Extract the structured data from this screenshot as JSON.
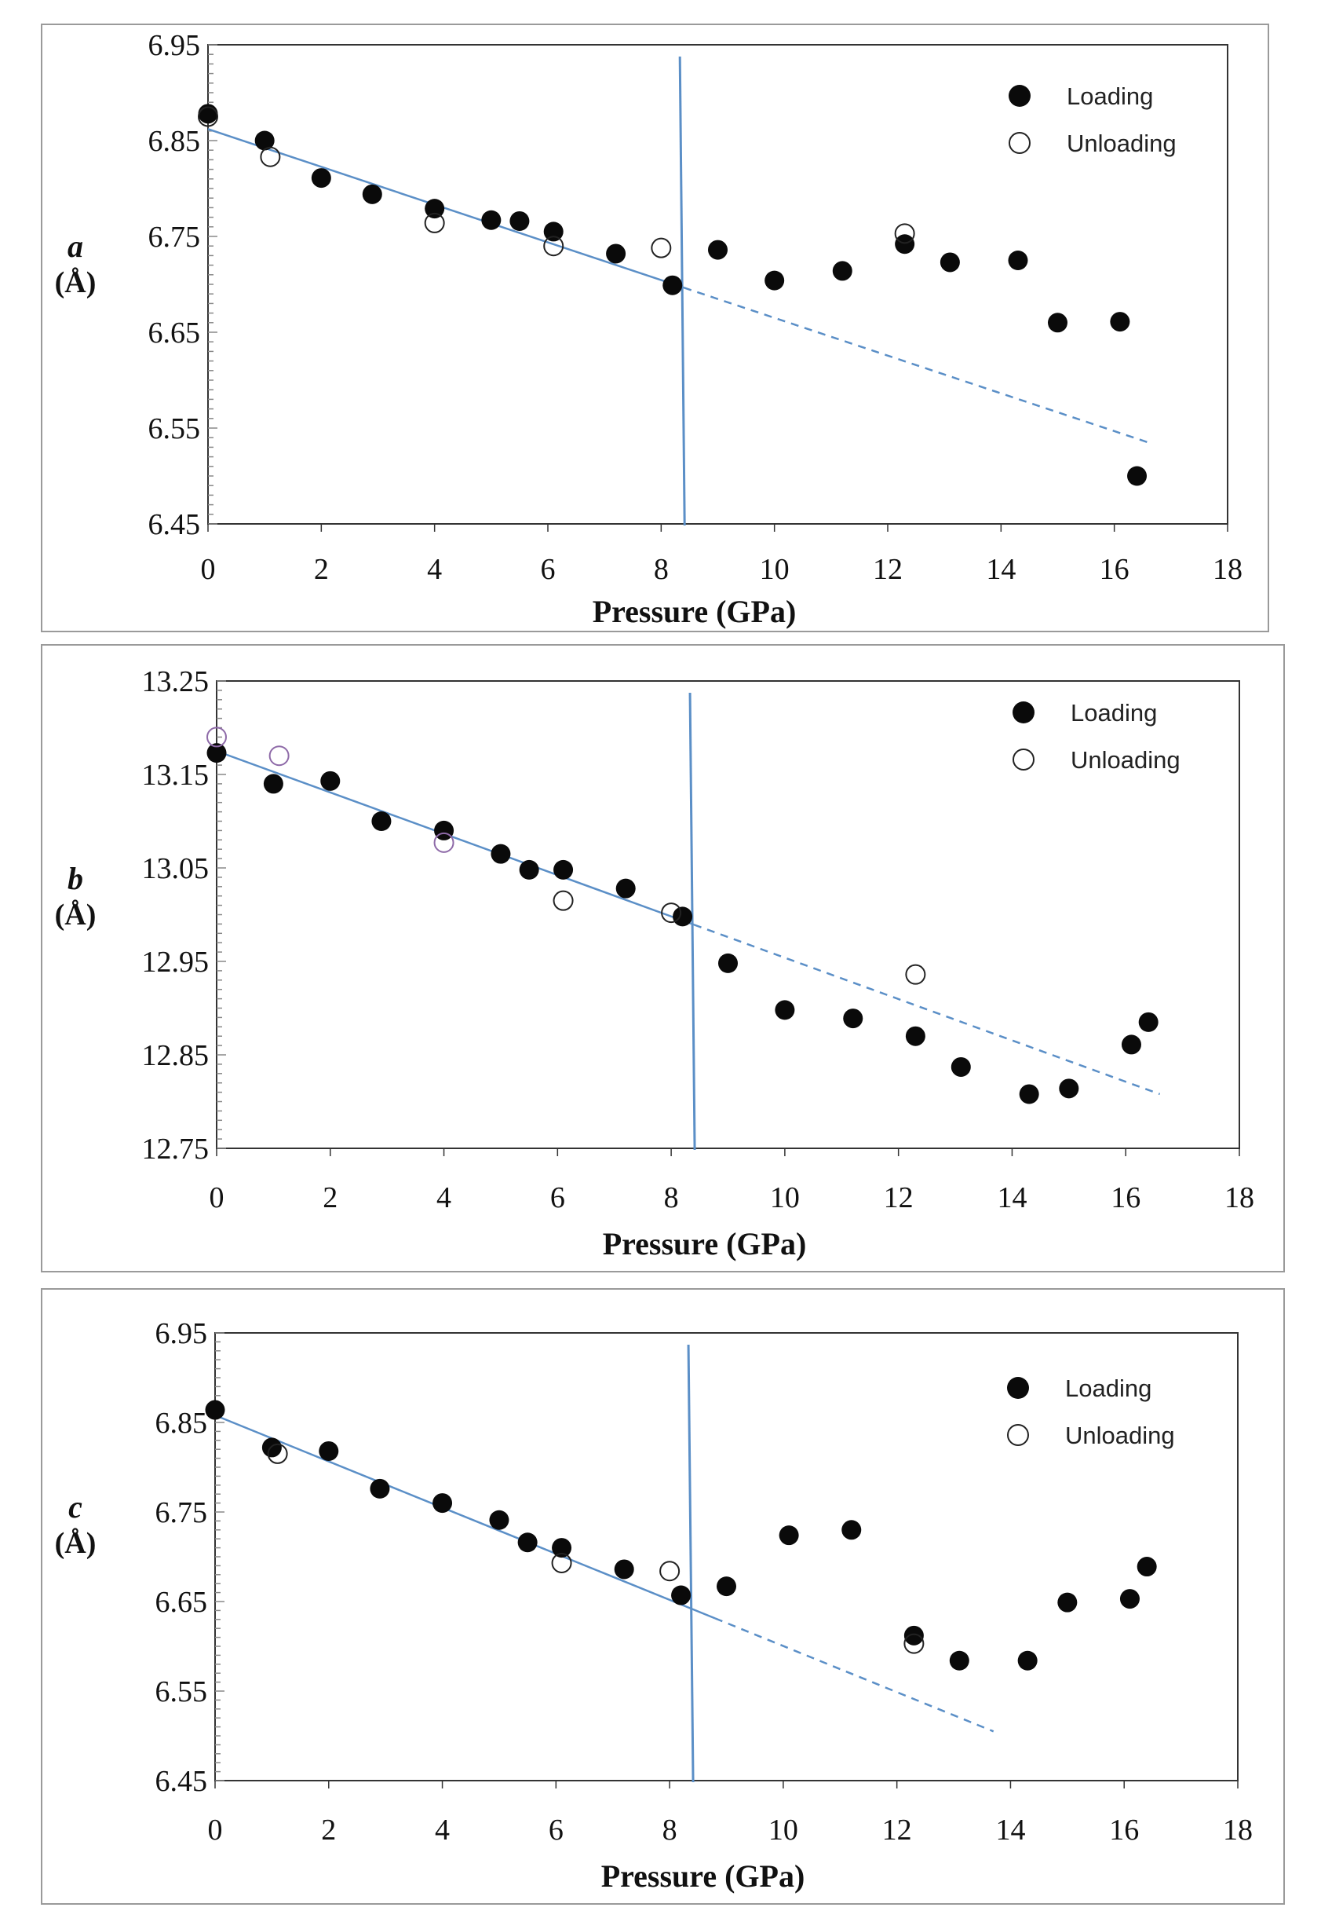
{
  "chart_data": [
    {
      "type": "scatter",
      "panel": "a",
      "title": "",
      "ylabel_var": "a",
      "ylabel_unit": "(Å)",
      "xlabel": "Pressure (GPa)",
      "xlim": [
        0,
        18
      ],
      "ylim": [
        6.45,
        6.95
      ],
      "xticks": [
        0,
        2,
        4,
        6,
        8,
        10,
        12,
        14,
        16,
        18
      ],
      "yticks": [
        6.45,
        6.55,
        6.65,
        6.75,
        6.85,
        6.95
      ],
      "ytick_labels": [
        "6.45",
        "6.55",
        "6.65",
        "6.75",
        "6.85",
        "6.95"
      ],
      "transition_pressure": 8.4,
      "fit_line": {
        "x_start": 0,
        "y_start": 6.862,
        "x_solid_end": 8.4,
        "x_end": 16.6,
        "y_end": 6.535
      },
      "legend": {
        "position": "top-right",
        "loading": "Loading",
        "unloading": "Unloading"
      },
      "series": [
        {
          "name": "Loading",
          "marker": "filled",
          "x": [
            0,
            1.0,
            2.0,
            2.9,
            4.0,
            5.0,
            5.5,
            6.1,
            7.2,
            8.2,
            9.0,
            10.0,
            11.2,
            12.3,
            13.1,
            14.3,
            15.0,
            16.1,
            16.4
          ],
          "y": [
            6.878,
            6.85,
            6.811,
            6.794,
            6.779,
            6.767,
            6.766,
            6.755,
            6.732,
            6.699,
            6.736,
            6.704,
            6.714,
            6.742,
            6.723,
            6.725,
            6.66,
            6.661,
            6.5
          ]
        },
        {
          "name": "Unloading",
          "marker": "open",
          "x": [
            0,
            1.1,
            4.0,
            6.1,
            8.0,
            12.3
          ],
          "y": [
            6.875,
            6.833,
            6.764,
            6.74,
            6.738,
            6.753
          ],
          "colors": [
            "#222222",
            "#222222",
            "#222222",
            "#222222",
            "#222222",
            "#222222"
          ]
        }
      ]
    },
    {
      "type": "scatter",
      "panel": "b",
      "title": "",
      "ylabel_var": "b",
      "ylabel_unit": "(Å)",
      "xlabel": "Pressure (GPa)",
      "xlim": [
        0,
        18
      ],
      "ylim": [
        12.75,
        13.25
      ],
      "xticks": [
        0,
        2,
        4,
        6,
        8,
        10,
        12,
        14,
        16,
        18
      ],
      "yticks": [
        12.75,
        12.85,
        12.95,
        13.05,
        13.15,
        13.25
      ],
      "ytick_labels": [
        "12.75",
        "12.85",
        "12.95",
        "13.05",
        "13.15",
        "13.25"
      ],
      "transition_pressure": 8.4,
      "fit_line": {
        "x_start": 0,
        "y_start": 13.175,
        "x_solid_end": 8.4,
        "x_end": 16.6,
        "y_end": 12.808
      },
      "legend": {
        "position": "top-right",
        "loading": "Loading",
        "unloading": "Unloading"
      },
      "series": [
        {
          "name": "Loading",
          "marker": "filled",
          "x": [
            0,
            1.0,
            2.0,
            2.9,
            4.0,
            5.0,
            5.5,
            6.1,
            7.2,
            8.2,
            9.0,
            10.0,
            11.2,
            12.3,
            13.1,
            14.3,
            15.0,
            16.1,
            16.4
          ],
          "y": [
            13.173,
            13.14,
            13.143,
            13.1,
            13.09,
            13.065,
            13.048,
            13.048,
            13.028,
            12.998,
            12.948,
            12.898,
            12.889,
            12.87,
            12.837,
            12.808,
            12.814,
            12.861,
            12.885
          ]
        },
        {
          "name": "Unloading",
          "marker": "open",
          "x": [
            0,
            1.1,
            4.0,
            6.1,
            8.0,
            12.3
          ],
          "y": [
            13.19,
            13.17,
            13.077,
            13.015,
            13.002,
            12.936
          ],
          "colors": [
            "#8e6aa8",
            "#8e6aa8",
            "#8e6aa8",
            "#222222",
            "#222222",
            "#222222"
          ]
        }
      ]
    },
    {
      "type": "scatter",
      "panel": "c",
      "title": "",
      "ylabel_var": "c",
      "ylabel_unit": "(Å)",
      "xlabel": "Pressure (GPa)",
      "xlim": [
        0,
        18
      ],
      "ylim": [
        6.45,
        6.95
      ],
      "xticks": [
        0,
        2,
        4,
        6,
        8,
        10,
        12,
        14,
        16,
        18
      ],
      "yticks": [
        6.45,
        6.55,
        6.65,
        6.75,
        6.85,
        6.95
      ],
      "ytick_labels": [
        "6.45",
        "6.55",
        "6.65",
        "6.75",
        "6.85",
        "6.95"
      ],
      "transition_pressure": 8.4,
      "fit_line": {
        "x_start": 0,
        "y_start": 6.858,
        "x_solid_end": 8.8,
        "x_end": 13.7,
        "y_end": 6.505
      },
      "legend": {
        "position": "top-right",
        "loading": "Loading",
        "unloading": "Unloading"
      },
      "series": [
        {
          "name": "Loading",
          "marker": "filled",
          "x": [
            0,
            1.0,
            2.0,
            2.9,
            4.0,
            5.0,
            5.5,
            6.1,
            7.2,
            8.2,
            9.0,
            10.1,
            11.2,
            12.3,
            13.1,
            14.3,
            15.0,
            16.1,
            16.4
          ],
          "y": [
            6.864,
            6.822,
            6.818,
            6.776,
            6.76,
            6.741,
            6.716,
            6.71,
            6.686,
            6.657,
            6.667,
            6.724,
            6.73,
            6.612,
            6.584,
            6.584,
            6.649,
            6.653,
            6.689
          ]
        },
        {
          "name": "Unloading",
          "marker": "open",
          "x": [
            1.1,
            6.1,
            8.0,
            12.3
          ],
          "y": [
            6.815,
            6.693,
            6.684,
            6.603
          ],
          "colors": [
            "#222222",
            "#222222",
            "#222222",
            "#222222"
          ]
        }
      ]
    }
  ]
}
